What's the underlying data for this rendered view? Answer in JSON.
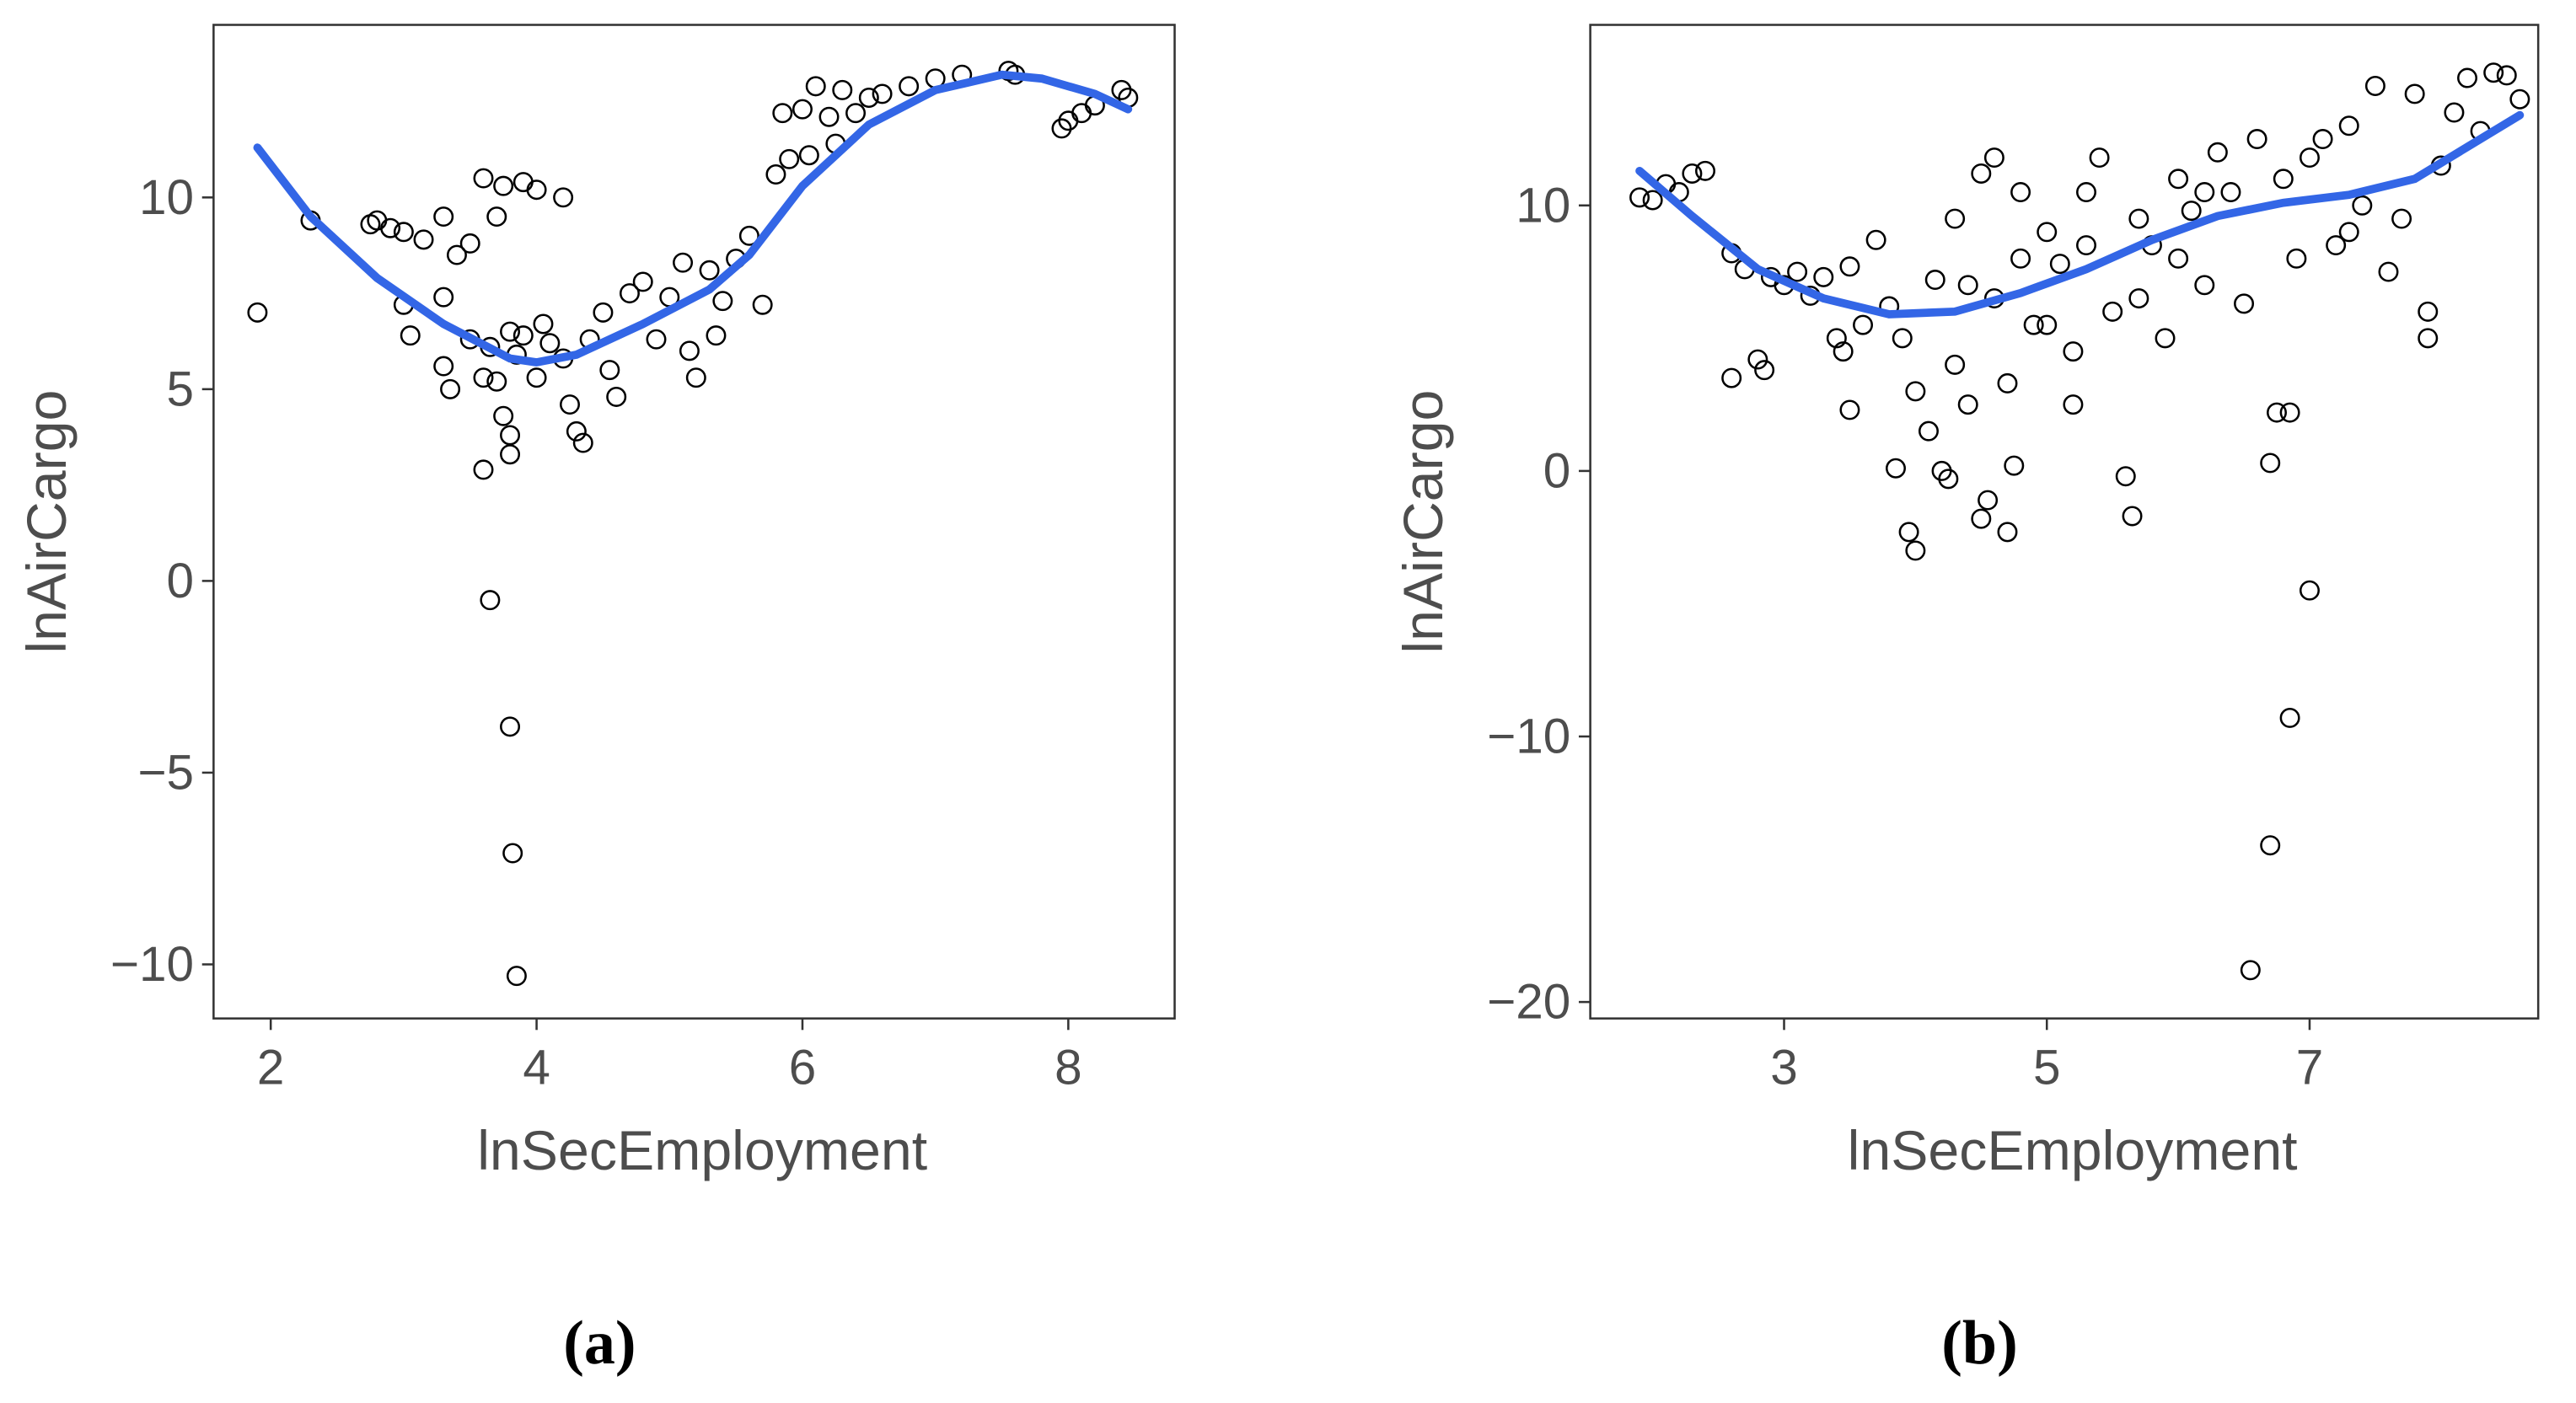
{
  "chart_data": [
    {
      "type": "scatter",
      "caption": "(a)",
      "xlabel": "lnSecEmployment",
      "ylabel": "lnAirCargo",
      "xlim": [
        1.57,
        8.8
      ],
      "ylim": [
        -11.41,
        14.5
      ],
      "xticks": [
        2,
        4,
        6,
        8
      ],
      "yticks": [
        {
          "value": -10,
          "label": "−10"
        },
        {
          "value": -5,
          "label": "−5"
        },
        0,
        5,
        10
      ],
      "point_color": "#000000",
      "points": {
        "x": [
          1.9,
          2.3,
          2.75,
          2.8,
          2.9,
          3.0,
          3.15,
          3.3,
          3.4,
          3.5,
          3.6,
          3.75,
          3.9,
          4.0,
          4.2,
          3.7,
          3.0,
          3.05,
          3.3,
          3.3,
          3.35,
          3.5,
          3.6,
          3.65,
          3.7,
          3.8,
          3.85,
          3.9,
          4.0,
          4.05,
          4.1,
          4.2,
          4.25,
          4.3,
          4.35,
          3.75,
          3.8,
          3.8,
          3.6,
          3.65,
          3.8,
          3.82,
          3.85,
          4.4,
          4.5,
          4.55,
          4.6,
          4.7,
          4.8,
          4.9,
          5.0,
          5.1,
          5.15,
          5.2,
          5.3,
          5.35,
          5.4,
          5.5,
          5.6,
          5.7,
          5.8,
          5.85,
          5.9,
          6.0,
          6.05,
          6.1,
          6.2,
          6.25,
          6.3,
          6.4,
          6.5,
          6.6,
          6.8,
          7.0,
          7.2,
          7.55,
          7.6,
          7.95,
          8.0,
          8.1,
          8.2,
          8.4,
          8.45
        ],
        "y": [
          7.0,
          9.4,
          9.3,
          9.4,
          9.2,
          9.1,
          8.9,
          9.5,
          8.5,
          8.8,
          10.5,
          10.3,
          10.4,
          10.2,
          10.0,
          9.5,
          7.2,
          6.4,
          7.4,
          5.6,
          5.0,
          6.3,
          5.3,
          6.1,
          5.2,
          6.5,
          5.9,
          6.4,
          5.3,
          6.7,
          6.2,
          5.8,
          4.6,
          3.9,
          3.6,
          4.3,
          3.8,
          3.3,
          2.9,
          -0.5,
          -3.8,
          -7.1,
          -10.3,
          6.3,
          7.0,
          5.5,
          4.8,
          7.5,
          7.8,
          6.3,
          7.4,
          8.3,
          6.0,
          5.3,
          8.1,
          6.4,
          7.3,
          8.4,
          9.0,
          7.2,
          10.6,
          12.2,
          11.0,
          12.3,
          11.1,
          12.9,
          12.1,
          11.4,
          12.8,
          12.2,
          12.6,
          12.7,
          12.9,
          13.1,
          13.2,
          13.3,
          13.2,
          11.8,
          12.0,
          12.2,
          12.4,
          12.8,
          12.6
        ]
      },
      "smooth": {
        "color": "#3366e6",
        "x": [
          1.9,
          2.3,
          2.8,
          3.3,
          3.8,
          4.0,
          4.3,
          4.8,
          5.3,
          5.6,
          6.0,
          6.5,
          7.0,
          7.5,
          7.8,
          8.2,
          8.45
        ],
        "y": [
          11.3,
          9.5,
          7.9,
          6.7,
          5.8,
          5.7,
          5.9,
          6.7,
          7.6,
          8.5,
          10.3,
          11.9,
          12.8,
          13.2,
          13.1,
          12.7,
          12.3
        ]
      }
    },
    {
      "type": "scatter",
      "caption": "(b)",
      "xlabel": "lnSecEmployment",
      "ylabel": "lnAirCargo",
      "xlim": [
        1.525,
        8.74
      ],
      "ylim": [
        -20.62,
        16.8
      ],
      "xticks": [
        3,
        5,
        7
      ],
      "yticks": [
        {
          "value": -20,
          "label": "−20"
        },
        {
          "value": -10,
          "label": "−10"
        },
        0,
        10
      ],
      "point_color": "#000000",
      "points": {
        "x": [
          1.9,
          2.0,
          2.1,
          2.2,
          2.3,
          2.4,
          2.6,
          2.6,
          2.7,
          2.8,
          2.85,
          2.9,
          3.0,
          3.1,
          3.2,
          3.3,
          3.4,
          3.45,
          3.5,
          3.5,
          3.6,
          3.7,
          3.8,
          3.85,
          3.9,
          3.95,
          4.0,
          4.0,
          4.1,
          4.15,
          4.2,
          4.25,
          4.3,
          4.4,
          4.5,
          4.55,
          4.5,
          4.6,
          4.6,
          4.7,
          4.7,
          4.75,
          4.8,
          4.9,
          5.0,
          5.1,
          5.2,
          5.2,
          5.3,
          5.4,
          5.5,
          5.6,
          5.65,
          5.7,
          5.8,
          5.9,
          6.0,
          6.1,
          6.2,
          6.3,
          6.4,
          6.5,
          6.55,
          6.6,
          6.7,
          6.7,
          6.75,
          6.85,
          6.85,
          6.9,
          7.0,
          7.0,
          7.1,
          7.2,
          7.3,
          7.4,
          7.5,
          7.6,
          7.7,
          7.8,
          7.9,
          7.9,
          8.0,
          8.1,
          8.2,
          8.3,
          8.4,
          8.5,
          8.6,
          4.3,
          4.8,
          5.7,
          6.2,
          5.0,
          4.4,
          6.8,
          7.3,
          5.3,
          6.0
        ],
        "y": [
          10.3,
          10.2,
          10.8,
          10.5,
          11.2,
          11.3,
          3.5,
          8.2,
          7.6,
          4.2,
          3.8,
          7.3,
          7.0,
          7.5,
          6.6,
          7.3,
          5.0,
          4.5,
          2.3,
          7.7,
          5.5,
          8.7,
          6.2,
          0.1,
          5.0,
          -2.3,
          -3.0,
          3.0,
          1.5,
          7.2,
          0.0,
          -0.3,
          4.0,
          2.5,
          -1.8,
          -1.1,
          11.2,
          11.8,
          6.5,
          -2.3,
          3.3,
          0.2,
          8.0,
          5.5,
          9.0,
          7.8,
          2.5,
          4.5,
          10.5,
          11.8,
          6.0,
          -0.2,
          -1.7,
          9.5,
          8.5,
          5.0,
          11.0,
          9.8,
          7.0,
          12.0,
          10.5,
          6.3,
          -18.8,
          12.5,
          0.3,
          -14.1,
          2.2,
          2.2,
          -9.3,
          8.0,
          -4.5,
          11.8,
          12.5,
          8.5,
          13.0,
          10.0,
          14.5,
          7.5,
          9.5,
          14.2,
          6.0,
          5.0,
          11.5,
          13.5,
          14.8,
          12.8,
          15.0,
          14.9,
          14.0,
          9.5,
          10.5,
          6.5,
          10.5,
          5.5,
          7.0,
          11.0,
          9.0,
          8.5,
          8.0
        ]
      },
      "smooth": {
        "color": "#3366e6",
        "x": [
          1.9,
          2.3,
          2.8,
          3.3,
          3.8,
          4.3,
          4.8,
          5.3,
          5.8,
          6.3,
          6.8,
          7.3,
          7.8,
          8.2,
          8.6
        ],
        "y": [
          11.3,
          9.6,
          7.6,
          6.5,
          5.9,
          6.0,
          6.7,
          7.6,
          8.7,
          9.6,
          10.1,
          10.4,
          11.0,
          12.2,
          13.4
        ]
      }
    }
  ]
}
